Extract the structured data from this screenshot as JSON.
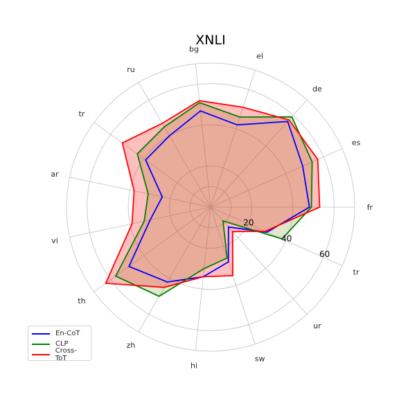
{
  "chart_data": {
    "type": "radar",
    "title": "XNLI",
    "categories": [
      "fr",
      "es",
      "de",
      "el",
      "bg",
      "ru",
      "tr",
      "ar",
      "vi",
      "th",
      "zh",
      "hi",
      "sw",
      "ur",
      "tr"
    ],
    "rmax": 70,
    "rticks": [
      20,
      40,
      60
    ],
    "grid": true,
    "legend_position": "lower-left",
    "series": [
      {
        "name": "En-CoT",
        "color": "#0000ff",
        "fill": false,
        "values": [
          48,
          49,
          56,
          42,
          47,
          40,
          39,
          24,
          30,
          49,
          42,
          34,
          28,
          13,
          30
        ]
      },
      {
        "name": "CLP",
        "color": "#008000",
        "fill": "#8a9a3a",
        "values": [
          49,
          54,
          59,
          46,
          51,
          45,
          44,
          31,
          33,
          57,
          50,
          30,
          26,
          9,
          38
        ]
      },
      {
        "name": "Cross-ToT",
        "color": "#ff0000",
        "fill": "#ff0000",
        "values": [
          53,
          57,
          57,
          51,
          52,
          47,
          53,
          38,
          39,
          63,
          45,
          34,
          35,
          16,
          29
        ]
      }
    ]
  }
}
